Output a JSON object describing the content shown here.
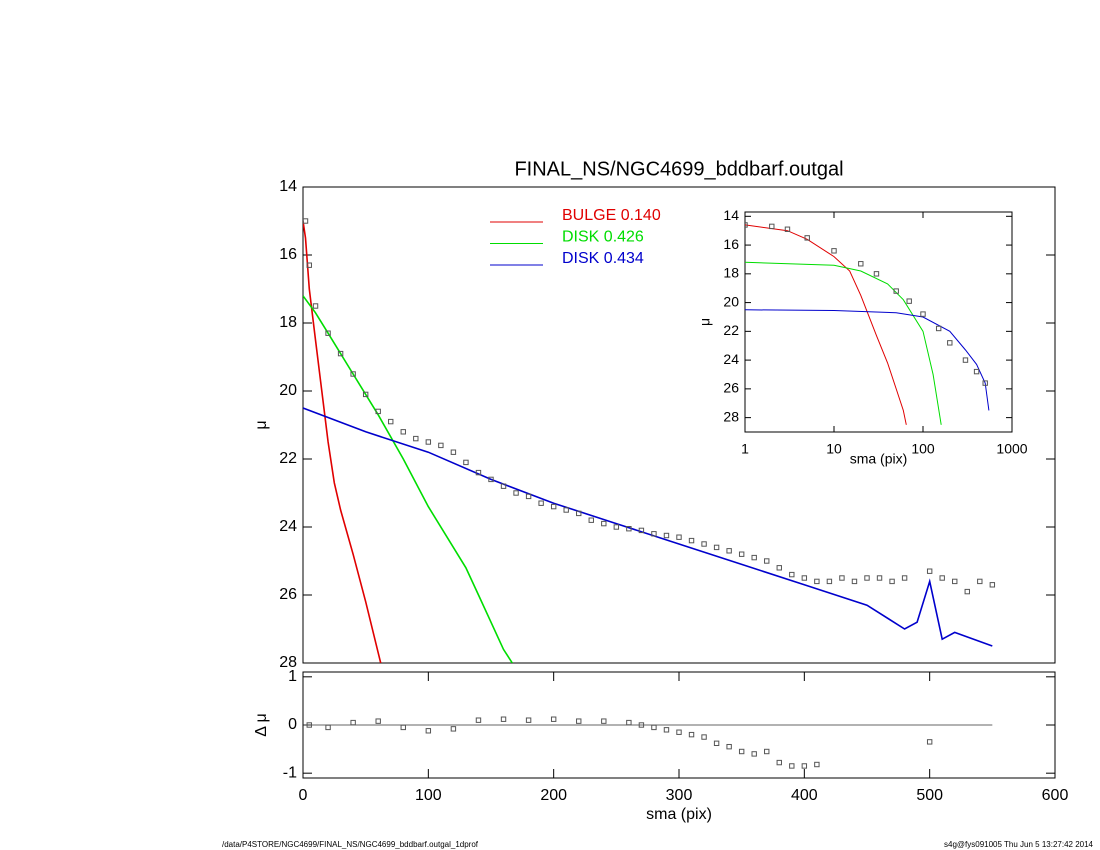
{
  "chart_data": [
    {
      "type": "line",
      "title": "FINAL_NS/NGC4699_bddbarf.outgal",
      "ylabel": "μ",
      "xlim": [
        0,
        600
      ],
      "ylim": [
        28,
        14
      ],
      "yticks": [
        14,
        16,
        18,
        20,
        22,
        24,
        26,
        28
      ],
      "series": [
        {
          "name": "BULGE  0.140",
          "color": "#e00000",
          "mode": "line",
          "x": [
            0,
            2,
            5,
            10,
            15,
            20,
            25,
            30,
            40,
            50,
            60,
            62
          ],
          "values": [
            15,
            15.5,
            17,
            18.5,
            20,
            21.5,
            22.7,
            23.5,
            24.8,
            26.2,
            27.7,
            28
          ]
        },
        {
          "name": "DISK  0.426",
          "color": "#00dd00",
          "mode": "line",
          "x": [
            0,
            10,
            20,
            40,
            60,
            80,
            100,
            120,
            130,
            140,
            150,
            160,
            167
          ],
          "values": [
            17.2,
            17.7,
            18.3,
            19.5,
            20.7,
            22,
            23.4,
            24.6,
            25.2,
            26,
            26.8,
            27.6,
            28
          ]
        },
        {
          "name": "DISK  0.434",
          "color": "#0000cc",
          "mode": "line",
          "x": [
            0,
            50,
            100,
            150,
            200,
            250,
            300,
            350,
            400,
            450,
            480,
            490,
            500,
            510,
            520,
            550
          ],
          "values": [
            20.5,
            21.2,
            21.8,
            22.6,
            23.3,
            23.9,
            24.5,
            25.1,
            25.7,
            26.3,
            27,
            26.8,
            25.6,
            27.3,
            27.1,
            27.5
          ]
        },
        {
          "color": "#555555",
          "mode": "points",
          "x": [
            2,
            5,
            10,
            20,
            30,
            40,
            50,
            60,
            70,
            80,
            90,
            100,
            110,
            120,
            130,
            140,
            150,
            160,
            170,
            180,
            190,
            200,
            210,
            220,
            230,
            240,
            250,
            260,
            270,
            280,
            290,
            300,
            310,
            320,
            330,
            340,
            350,
            360,
            370,
            380,
            390,
            400,
            410,
            420,
            430,
            440,
            450,
            460,
            470,
            480,
            500,
            510,
            520,
            530,
            540,
            550
          ],
          "values": [
            15,
            16.3,
            17.5,
            18.3,
            18.9,
            19.5,
            20.1,
            20.6,
            20.9,
            21.2,
            21.4,
            21.5,
            21.6,
            21.8,
            22.1,
            22.4,
            22.6,
            22.8,
            23,
            23.1,
            23.3,
            23.4,
            23.5,
            23.6,
            23.8,
            23.9,
            24,
            24.05,
            24.1,
            24.2,
            24.25,
            24.3,
            24.4,
            24.5,
            24.6,
            24.7,
            24.8,
            24.9,
            25,
            25.2,
            25.4,
            25.5,
            25.6,
            25.6,
            25.5,
            25.6,
            25.5,
            25.5,
            25.6,
            25.5,
            25.3,
            25.5,
            25.6,
            25.9,
            25.6,
            25.7
          ]
        }
      ]
    },
    {
      "type": "scatter",
      "xlabel": "sma (pix)",
      "ylabel": "Δ μ",
      "xlim": [
        0,
        600
      ],
      "xticks": [
        0,
        100,
        200,
        300,
        400,
        500,
        600
      ],
      "ylim": [
        -1.1,
        1.1
      ],
      "yticks": [
        1,
        0,
        -1
      ],
      "series": [
        {
          "color": "#555555",
          "mode": "points",
          "x": [
            5,
            20,
            40,
            60,
            80,
            100,
            120,
            140,
            160,
            180,
            200,
            220,
            240,
            260,
            270,
            280,
            290,
            300,
            310,
            320,
            330,
            340,
            350,
            360,
            370,
            380,
            390,
            400,
            410,
            500
          ],
          "values": [
            0,
            -0.05,
            0.05,
            0.08,
            -0.05,
            -0.12,
            -0.08,
            0.1,
            0.12,
            0.1,
            0.12,
            0.08,
            0.08,
            0.05,
            0,
            -0.05,
            -0.1,
            -0.15,
            -0.2,
            -0.25,
            -0.38,
            -0.45,
            -0.55,
            -0.6,
            -0.55,
            -0.78,
            -0.85,
            -0.85,
            -0.82,
            -0.35
          ]
        }
      ]
    },
    {
      "type": "line",
      "xlabel": "sma (pix)",
      "ylabel": "μ",
      "xlog": true,
      "xlim": [
        1,
        1000
      ],
      "xticks": [
        1,
        10,
        100,
        1000
      ],
      "ylim": [
        29,
        13.7
      ],
      "yticks": [
        14,
        16,
        18,
        20,
        22,
        24,
        26,
        28
      ],
      "series": [
        {
          "color": "#e00000",
          "mode": "line",
          "x": [
            1,
            3,
            5,
            10,
            15,
            20,
            30,
            40,
            50,
            60,
            65
          ],
          "values": [
            14.6,
            15,
            15.6,
            16.8,
            17.8,
            19.5,
            22.3,
            24.2,
            26,
            27.5,
            28.5
          ]
        },
        {
          "color": "#00dd00",
          "mode": "line",
          "x": [
            1,
            10,
            20,
            40,
            60,
            100,
            130,
            160
          ],
          "values": [
            17.2,
            17.4,
            17.8,
            18.7,
            19.8,
            22,
            25,
            28.5
          ]
        },
        {
          "color": "#0000cc",
          "mode": "line",
          "x": [
            1,
            10,
            50,
            100,
            200,
            300,
            400,
            500,
            550
          ],
          "values": [
            20.5,
            20.55,
            20.7,
            21,
            22,
            23.3,
            24.3,
            25.6,
            27.5
          ]
        },
        {
          "color": "#555555",
          "mode": "points",
          "x": [
            1,
            2,
            3,
            5,
            10,
            20,
            30,
            50,
            70,
            100,
            150,
            200,
            300,
            400,
            500
          ],
          "values": [
            14.6,
            14.7,
            14.9,
            15.5,
            16.4,
            17.3,
            18,
            19.2,
            19.9,
            20.8,
            21.8,
            22.8,
            24,
            24.8,
            25.6
          ]
        }
      ]
    }
  ],
  "footer": {
    "left": "/data/P4STORE/NGC4699/FINAL_NS/NGC4699_bddbarf.outgal_1dprof",
    "right": "s4g@fys091005  Thu Jun  5 13:27:42 2014"
  }
}
